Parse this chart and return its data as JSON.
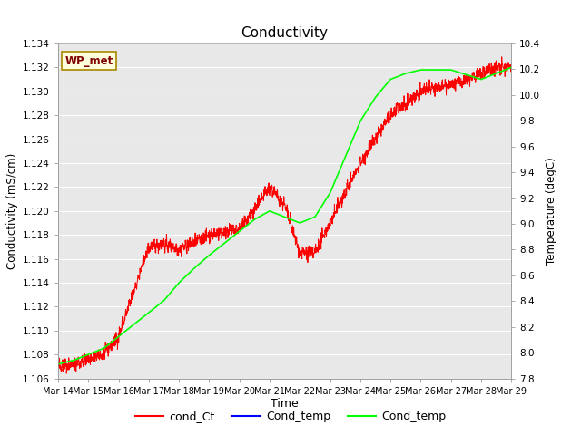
{
  "title": "Conductivity",
  "xlabel": "Time",
  "ylabel_left": "Conductivity (mS/cm)",
  "ylabel_right": "Temperature (degC)",
  "y_left_min": 1.106,
  "y_left_max": 1.134,
  "y_right_min": 7.8,
  "y_right_max": 10.4,
  "x_start": 14,
  "x_end": 29,
  "x_ticks": [
    14,
    15,
    16,
    17,
    18,
    19,
    20,
    21,
    22,
    23,
    24,
    25,
    26,
    27,
    28,
    29
  ],
  "x_tick_labels": [
    "Mar 14",
    "Mar 15",
    "Mar 16",
    "Mar 17",
    "Mar 18",
    "Mar 19",
    "Mar 20",
    "Mar 21",
    "Mar 22",
    "Mar 23",
    "Mar 24",
    "Mar 25",
    "Mar 26",
    "Mar 27",
    "Mar 28",
    "Mar 29"
  ],
  "background_color": "#e8e8e8",
  "figure_color": "#ffffff",
  "grid_color": "#ffffff",
  "line_red_color": "#ff0000",
  "line_green_color": "#00ff00",
  "line_blue_color": "#0000ff",
  "legend_label_red": "cond_Ct",
  "legend_label_blue": "Cond_temp",
  "legend_label_green": "Cond_temp",
  "watermark_text": "WP_met",
  "watermark_bg": "#ffffdd",
  "watermark_border": "#aa8800",
  "title_color": "#000000",
  "axis_label_color": "#000000",
  "tick_label_color": "#000000",
  "left_yticks": [
    1.106,
    1.108,
    1.11,
    1.112,
    1.114,
    1.116,
    1.118,
    1.12,
    1.122,
    1.124,
    1.126,
    1.128,
    1.13,
    1.132,
    1.134
  ],
  "right_yticks": [
    7.8,
    8.0,
    8.2,
    8.4,
    8.6,
    8.8,
    9.0,
    9.2,
    9.4,
    9.6,
    9.8,
    10.0,
    10.2,
    10.4
  ]
}
